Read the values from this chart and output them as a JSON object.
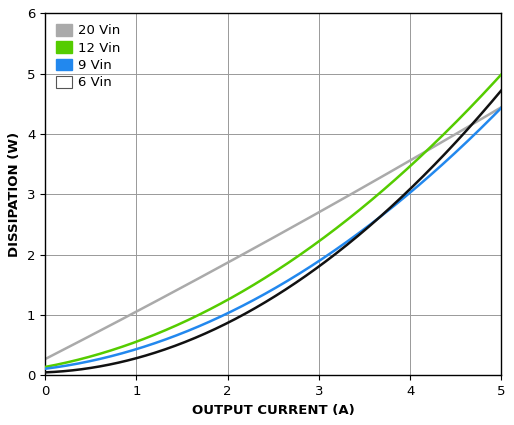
{
  "xlabel": "OUTPUT CURRENT (A)",
  "ylabel": "DISSIPATION (W)",
  "xlim": [
    0,
    5
  ],
  "ylim": [
    0,
    6
  ],
  "xticks": [
    0,
    1,
    2,
    3,
    4,
    5
  ],
  "yticks": [
    0,
    1,
    2,
    3,
    4,
    5,
    6
  ],
  "series": [
    {
      "label": "20 Vin",
      "color": "#aaaaaa",
      "linewidth": 1.8,
      "zorder": 2,
      "coeffs": {
        "a": 0.27,
        "b": 0.775,
        "c": 0.012
      }
    },
    {
      "label": "12 Vin",
      "color": "#55cc00",
      "linewidth": 1.8,
      "zorder": 3,
      "coeffs": {
        "a": 0.14,
        "b": 0.28,
        "c": 0.138
      }
    },
    {
      "label": "9 Vin",
      "color": "#2288ee",
      "linewidth": 1.8,
      "zorder": 4,
      "coeffs": {
        "a": 0.11,
        "b": 0.19,
        "c": 0.135
      }
    },
    {
      "label": "6 Vin",
      "color": "#111111",
      "linewidth": 1.8,
      "zorder": 5,
      "coeffs": {
        "a": 0.05,
        "b": 0.06,
        "c": 0.175
      }
    }
  ],
  "background_color": "#ffffff",
  "grid_color": "#999999",
  "legend_fontsize": 9.5,
  "axis_label_fontsize": 9.5,
  "tick_fontsize": 9.5
}
